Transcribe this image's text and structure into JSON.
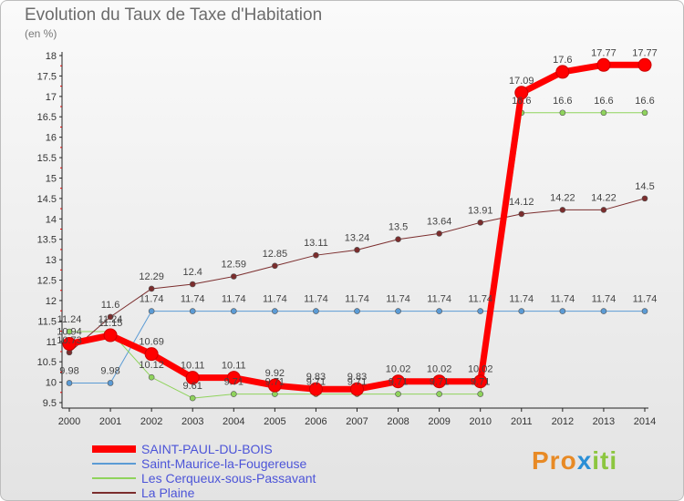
{
  "title": "Evolution du Taux de Taxe d'Habitation",
  "unit": "(en %)",
  "brand": {
    "parts": [
      "Pro",
      "x",
      "iti"
    ],
    "colors": [
      "#e88a25",
      "#2a8fd6",
      "#8cc63f"
    ]
  },
  "chart_data": {
    "type": "line",
    "x": [
      "2000",
      "2001",
      "2002",
      "2003",
      "2004",
      "2005",
      "2006",
      "2007",
      "2008",
      "2009",
      "2010",
      "2011",
      "2012",
      "2013",
      "2014"
    ],
    "ylim": [
      9.5,
      18
    ],
    "yticks": [
      "9.5",
      "10",
      "10.5",
      "11",
      "11.5",
      "12",
      "12.5",
      "13",
      "13.5",
      "14",
      "14.5",
      "15",
      "15.5",
      "16",
      "16.5",
      "17",
      "17.5",
      "18"
    ],
    "grid": false,
    "legend_position": "bottom-left",
    "series": [
      {
        "name": "SAINT-PAUL-DU-BOIS",
        "color": "#ff0000",
        "width": 7,
        "label_dy": -10,
        "values": [
          10.94,
          11.15,
          10.69,
          10.11,
          10.11,
          9.92,
          9.83,
          9.83,
          10.02,
          10.02,
          10.02,
          17.09,
          17.6,
          17.77,
          17.77
        ],
        "labels": [
          "10.94",
          "11.15",
          "10.69",
          "10.11",
          "10.11",
          "9.92",
          "9.83",
          "9.83",
          "10.02",
          "10.02",
          "10.02",
          "17.09",
          "17.6",
          "17.77",
          "17.77"
        ]
      },
      {
        "name": "Saint-Maurice-la-Fougereuse",
        "color": "#5b9bd5",
        "width": 1,
        "label_dy": -10,
        "values": [
          9.98,
          9.98,
          11.74,
          11.74,
          11.74,
          11.74,
          11.74,
          11.74,
          11.74,
          11.74,
          11.74,
          11.74,
          11.74,
          11.74,
          11.74
        ],
        "labels": [
          "9.98",
          "9.98",
          "11.74",
          "11.74",
          "11.74",
          "11.74",
          "11.74",
          "11.74",
          "11.74",
          "11.74",
          "11.74",
          "11.74",
          "11.74",
          "11.74",
          "11.74"
        ]
      },
      {
        "name": "Les Cerqueux-sous-Passavant",
        "color": "#8fd35c",
        "width": 1,
        "label_dy": -10,
        "values": [
          11.24,
          11.24,
          10.12,
          9.61,
          9.71,
          9.71,
          9.71,
          9.71,
          9.71,
          9.71,
          9.71,
          16.6,
          16.6,
          16.6,
          16.6
        ],
        "labels": [
          "11.24",
          "11.24",
          "10.12",
          "9.61",
          "9.71",
          "9.71",
          "9.71",
          "9.71",
          "9.71",
          "9.71",
          "9.71",
          "16.6",
          "16.6",
          "16.6",
          "16.6"
        ]
      },
      {
        "name": "La Plaine",
        "color": "#7b2d2d",
        "width": 1,
        "label_dy": -10,
        "values": [
          10.73,
          11.6,
          12.29,
          12.4,
          12.59,
          12.85,
          13.11,
          13.24,
          13.5,
          13.64,
          13.91,
          14.12,
          14.22,
          14.22,
          14.5
        ],
        "labels": [
          "10.73",
          "11.6",
          "12.29",
          "12.4",
          "12.59",
          "12.85",
          "13.11",
          "13.24",
          "13.5",
          "13.64",
          "13.91",
          "14.12",
          "14.22",
          "14.22",
          "14.5"
        ]
      }
    ]
  }
}
